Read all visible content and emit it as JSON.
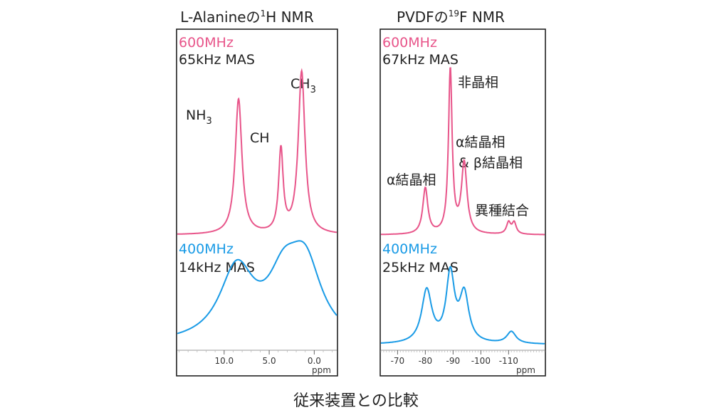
{
  "caption": "従来装置との比較",
  "colors": {
    "high_field": "#e8558a",
    "low_field": "#1a9be6",
    "frame": "#222222"
  },
  "chart_data": [
    {
      "type": "line",
      "title": {
        "prefix": "L-Alanineの",
        "sup": "1",
        "suffix": "H NMR"
      },
      "xlabel": "ppm",
      "x_reversed": true,
      "xlim": [
        -2.5,
        15.2
      ],
      "x_ticks": [
        "10.0",
        "5.0",
        "0.0"
      ],
      "x_tick_values": [
        10,
        5,
        0
      ],
      "series": [
        {
          "field": "600MHz",
          "mas": "65kHz MAS",
          "baseline": 0,
          "peaks": [
            {
              "center": 8.4,
              "height": 1.0,
              "width": 0.45
            },
            {
              "center": 3.7,
              "height": 0.61,
              "width": 0.3
            },
            {
              "center": 1.4,
              "height": 1.2,
              "width": 0.45
            }
          ],
          "labels": [
            {
              "base": "NH",
              "sub": "3"
            },
            {
              "base": "CH",
              "sub": ""
            },
            {
              "base": "CH",
              "sub": "3"
            }
          ]
        },
        {
          "field": "400MHz",
          "mas": "14kHz MAS",
          "baseline": 0,
          "peaks": [
            {
              "center": 8.6,
              "height": 0.72,
              "width": 2.3
            },
            {
              "center": 3.4,
              "height": 0.52,
              "width": 2.1
            },
            {
              "center": 1.0,
              "height": 0.72,
              "width": 2.2
            }
          ]
        }
      ]
    },
    {
      "type": "line",
      "title": {
        "prefix": "PVDFの",
        "sup": "19",
        "suffix": "F NMR"
      },
      "xlabel": "ppm",
      "x_reversed": true,
      "xlim": [
        -123,
        -64
      ],
      "x_ticks": [
        "-70",
        "-80",
        "-90",
        "-100",
        "-110"
      ],
      "x_tick_values": [
        -70,
        -80,
        -90,
        -100,
        -110
      ],
      "series": [
        {
          "field": "600MHz",
          "mas": "67kHz MAS",
          "baseline": 0,
          "peaks": [
            {
              "center": -80,
              "height": 0.28,
              "width": 1.1
            },
            {
              "center": -89,
              "height": 1.0,
              "width": 0.8
            },
            {
              "center": -94,
              "height": 0.43,
              "width": 1.2
            },
            {
              "center": -110,
              "height": 0.07,
              "width": 0.9
            },
            {
              "center": -112,
              "height": 0.07,
              "width": 0.9
            }
          ],
          "labels": [
            {
              "text": "α結晶相"
            },
            {
              "text": "非晶相"
            },
            {
              "text": "α結晶相"
            },
            {
              "text": "& β結晶相"
            },
            {
              "text": "異種結合"
            }
          ]
        },
        {
          "field": "400MHz",
          "mas": "25kHz MAS",
          "baseline": 0,
          "peaks": [
            {
              "center": -80.5,
              "height": 0.53,
              "width": 2.2
            },
            {
              "center": -89,
              "height": 0.68,
              "width": 1.8
            },
            {
              "center": -94,
              "height": 0.48,
              "width": 2.0
            },
            {
              "center": -111,
              "height": 0.12,
              "width": 2.0
            }
          ]
        }
      ]
    }
  ]
}
